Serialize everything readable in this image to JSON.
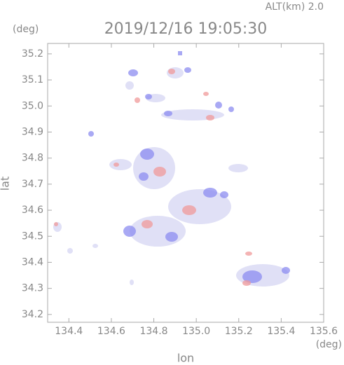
{
  "chart_data": {
    "type": "map",
    "title": "2019/12/16 19:05:30",
    "altitude_label": "ALT(km) 2.0",
    "xlabel": "lon",
    "ylabel": "lat",
    "xunit": "(deg)",
    "yunit": "(deg)",
    "xlim": [
      134.3,
      135.6
    ],
    "ylim": [
      34.17,
      35.24
    ],
    "xticks": [
      {
        "value": 134.4,
        "label": "134.4"
      },
      {
        "value": 134.6,
        "label": "134.6"
      },
      {
        "value": 134.8,
        "label": "134.8"
      },
      {
        "value": 135.0,
        "label": "135.0"
      },
      {
        "value": 135.2,
        "label": "135.2"
      },
      {
        "value": 135.4,
        "label": "135.4"
      },
      {
        "value": 135.6,
        "label": "135.6"
      }
    ],
    "yticks": [
      {
        "value": 34.2,
        "label": "34.2"
      },
      {
        "value": 34.3,
        "label": "34.3"
      },
      {
        "value": 34.4,
        "label": "34.4"
      },
      {
        "value": 34.5,
        "label": "34.5"
      },
      {
        "value": 34.6,
        "label": "34.6"
      },
      {
        "value": 34.7,
        "label": "34.7"
      },
      {
        "value": 34.8,
        "label": "34.8"
      },
      {
        "value": 34.9,
        "label": "34.9"
      },
      {
        "value": 35.0,
        "label": "35.0"
      },
      {
        "value": 35.1,
        "label": "35.1"
      },
      {
        "value": 35.2,
        "label": "35.2"
      }
    ]
  }
}
